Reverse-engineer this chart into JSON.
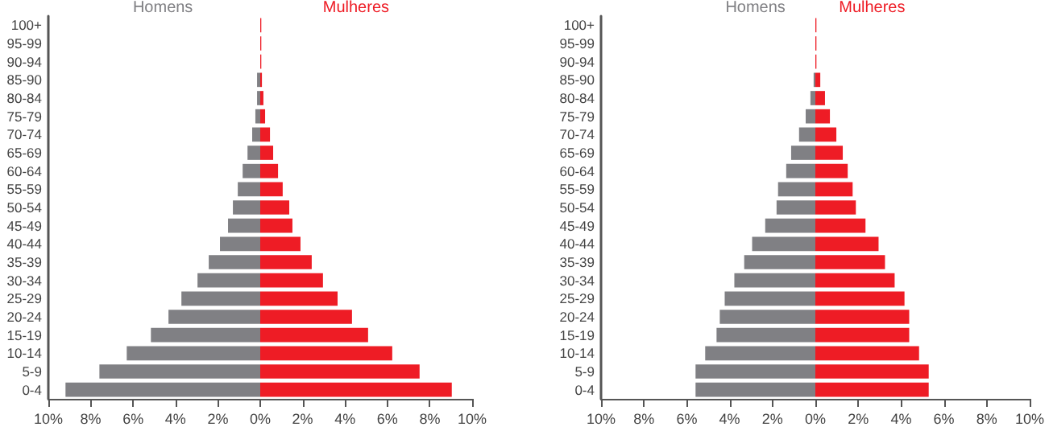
{
  "chart_data": [
    {
      "type": "bar",
      "orientation": "horizontal",
      "stacked": true,
      "legend": false,
      "grid": false,
      "categories": [
        "100+",
        "95-99",
        "90-94",
        "85-90",
        "80-84",
        "75-79",
        "70-74",
        "65-69",
        "60-64",
        "55-59",
        "50-54",
        "45-49",
        "40-44",
        "35-39",
        "30-34",
        "25-29",
        "20-24",
        "15-19",
        "10-14",
        "5-9",
        "0-4"
      ],
      "series": [
        {
          "name": "Homens",
          "color": "#808084",
          "values": [
            0,
            0,
            0,
            -0.15,
            -0.15,
            -0.23,
            -0.38,
            -0.6,
            -0.83,
            -1.06,
            -1.29,
            -1.52,
            -1.9,
            -2.43,
            -2.96,
            -3.72,
            -4.33,
            -5.16,
            -6.3,
            -7.59,
            -9.19
          ]
        },
        {
          "name": "Mulheres",
          "color": "#ee1c25",
          "values": [
            0.05,
            0.05,
            0.05,
            0.08,
            0.15,
            0.23,
            0.46,
            0.61,
            0.84,
            1.06,
            1.37,
            1.52,
            1.9,
            2.43,
            2.96,
            3.65,
            4.33,
            5.09,
            6.23,
            7.52,
            9.04
          ]
        }
      ],
      "xlim": [
        -10,
        10
      ],
      "xticks": [
        {
          "value": -10,
          "label": "10%"
        },
        {
          "value": -8,
          "label": "8%"
        },
        {
          "value": -6,
          "label": "6%"
        },
        {
          "value": -4,
          "label": "4%"
        },
        {
          "value": -2,
          "label": "2%"
        },
        {
          "value": 0,
          "label": "0%"
        },
        {
          "value": 2,
          "label": "2%"
        },
        {
          "value": 4,
          "label": "4%"
        },
        {
          "value": 6,
          "label": "6%"
        },
        {
          "value": 8,
          "label": "8%"
        },
        {
          "value": 10,
          "label": "10%"
        }
      ]
    },
    {
      "type": "bar",
      "orientation": "horizontal",
      "stacked": true,
      "legend": false,
      "grid": false,
      "categories": [
        "100+",
        "95-99",
        "90-94",
        "85-90",
        "80-84",
        "75-79",
        "70-74",
        "65-69",
        "60-64",
        "55-59",
        "50-54",
        "45-49",
        "40-44",
        "35-39",
        "30-34",
        "25-29",
        "20-24",
        "15-19",
        "10-14",
        "5-9",
        "0-4"
      ],
      "series": [
        {
          "name": "Homens",
          "color": "#808084",
          "values": [
            0,
            0,
            0,
            -0.08,
            -0.23,
            -0.45,
            -0.76,
            -1.13,
            -1.36,
            -1.74,
            -1.81,
            -2.34,
            -2.95,
            -3.32,
            -3.78,
            -4.23,
            -4.46,
            -4.61,
            -5.14,
            -5.59,
            -5.59
          ]
        },
        {
          "name": "Mulheres",
          "color": "#ee1c25",
          "values": [
            0.05,
            0.05,
            0.05,
            0.23,
            0.45,
            0.68,
            0.98,
            1.28,
            1.51,
            1.74,
            1.89,
            2.34,
            2.95,
            3.25,
            3.7,
            4.16,
            4.38,
            4.38,
            4.84,
            5.29,
            5.29
          ]
        }
      ],
      "xlim": [
        -10,
        10
      ],
      "xticks": [
        {
          "value": -10,
          "label": "10%"
        },
        {
          "value": -8,
          "label": "8%"
        },
        {
          "value": -6,
          "label": "6%"
        },
        {
          "value": -4,
          "label": "4%"
        },
        {
          "value": -2,
          "label": "2%"
        },
        {
          "value": 0,
          "label": "0%"
        },
        {
          "value": 2,
          "label": "2%"
        },
        {
          "value": 4,
          "label": "4%"
        },
        {
          "value": 6,
          "label": "6%"
        },
        {
          "value": 8,
          "label": "8%"
        },
        {
          "value": 10,
          "label": "10%"
        }
      ]
    }
  ]
}
